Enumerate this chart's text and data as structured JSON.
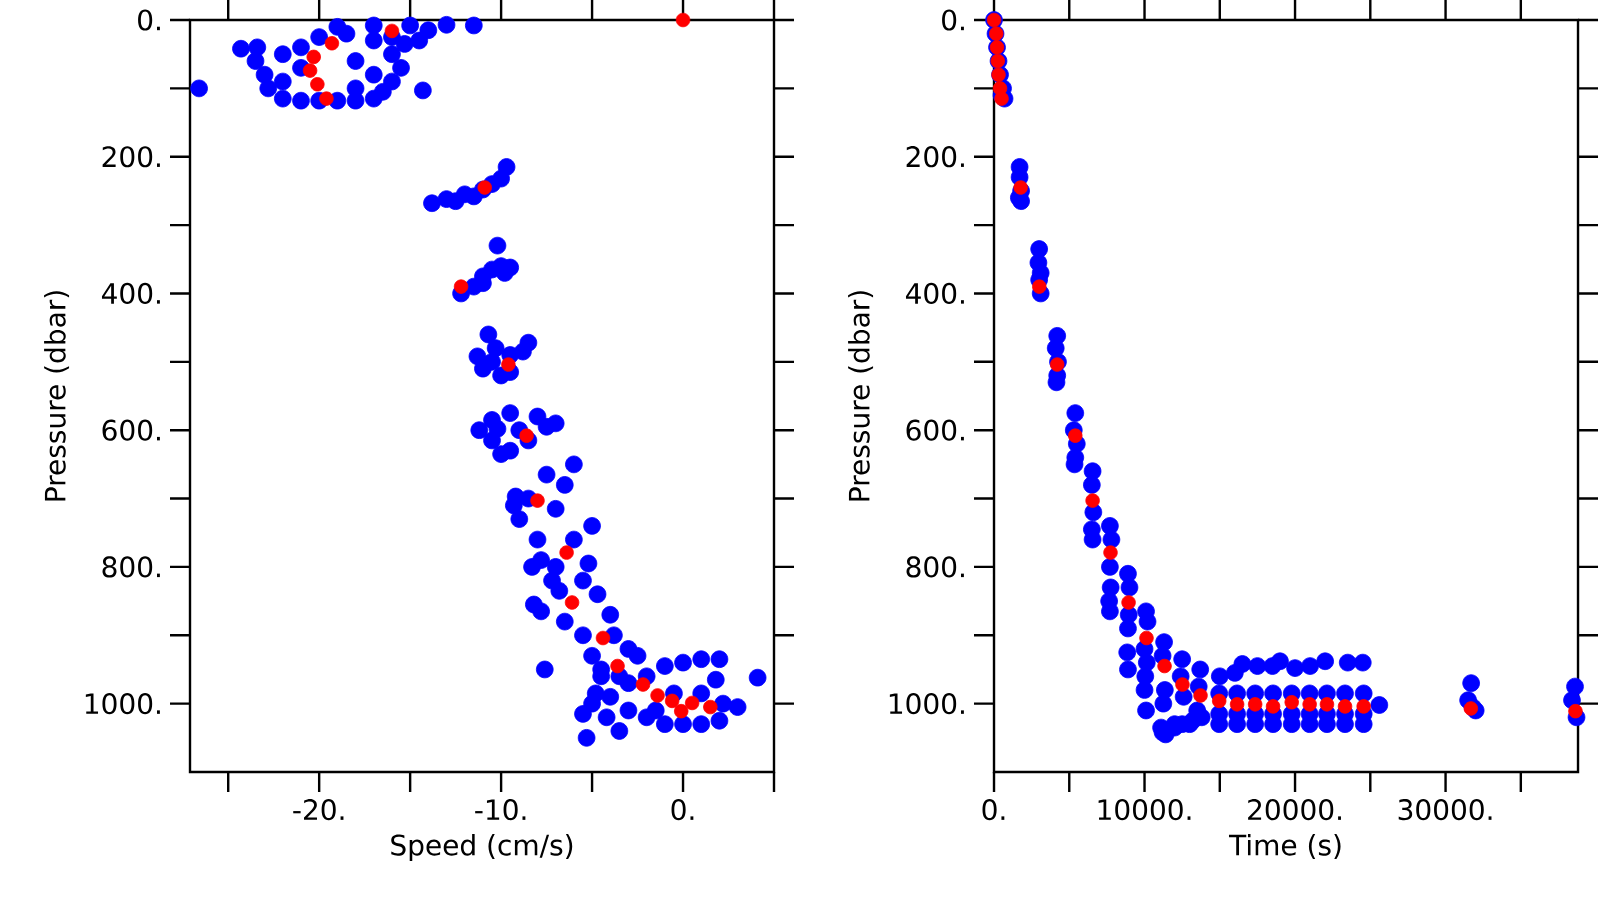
{
  "chart_data": [
    {
      "type": "scatter",
      "xlabel": "Speed (cm/s)",
      "ylabel": "Pressure (dbar)",
      "marker": "circle",
      "xlim": [
        -27.1,
        5
      ],
      "ylim": [
        1100,
        0
      ],
      "xticks": [
        {
          "value": -25,
          "label": null
        },
        {
          "value": -20,
          "label": "-20."
        },
        {
          "value": -15,
          "label": null
        },
        {
          "value": -10,
          "label": "-10."
        },
        {
          "value": -5,
          "label": null
        },
        {
          "value": 0,
          "label": "0."
        },
        {
          "value": 5,
          "label": null
        }
      ],
      "yticks": [
        {
          "value": 0,
          "label": "0."
        },
        {
          "value": 100,
          "label": null
        },
        {
          "value": 200,
          "label": "200."
        },
        {
          "value": 300,
          "label": null
        },
        {
          "value": 400,
          "label": "400."
        },
        {
          "value": 500,
          "label": null
        },
        {
          "value": 600,
          "label": "600."
        },
        {
          "value": 700,
          "label": null
        },
        {
          "value": 800,
          "label": "800."
        },
        {
          "value": 900,
          "label": null
        },
        {
          "value": 1000,
          "label": "1000."
        }
      ],
      "series": [
        {
          "color": "#0000ff",
          "x": [
            -23.4,
            -23.5,
            -23,
            -22.8,
            -22,
            -21,
            -20,
            -19,
            -18,
            -17,
            -16.5,
            -16,
            -15.5,
            -16,
            -17,
            -18.5,
            -19,
            -17,
            -15,
            -13,
            -11.5,
            -14,
            -16,
            -22,
            -21,
            -22,
            -18,
            -17,
            -18,
            -21,
            -20,
            -14.5,
            -15.3,
            -26.6,
            -24.3,
            -14.3,
            -13.8,
            -13,
            -12,
            -11,
            -10.5,
            -10,
            -9.7,
            -11.5,
            -12.5,
            -12.2,
            -11.5,
            -11,
            -10.5,
            -10,
            -9.5,
            -10.2,
            -11,
            -9.8,
            -11.3,
            -10.5,
            -10.7,
            -10,
            -9.5,
            -8.8,
            -8.5,
            -9.5,
            -10.3,
            -11,
            -11.2,
            -10.5,
            -10.5,
            -10,
            -9.5,
            -9,
            -8,
            -7.5,
            -7,
            -9.5,
            -8.5,
            -10.2,
            -9.2,
            -8.5,
            -7.5,
            -6.5,
            -6,
            -7,
            -9,
            -8,
            -9.3,
            -7.8,
            -7,
            -6.8,
            -8.3,
            -8.2,
            -7.8,
            -7.2,
            -6,
            -5,
            -5.2,
            -5.5,
            -4.7,
            -6.5,
            -5.5,
            -4,
            -3.8,
            -3,
            -2.5,
            -5,
            -4.5,
            -7.6,
            -5,
            -4,
            -3.5,
            -5.3,
            -4.2,
            -3,
            -2,
            -1,
            0,
            1,
            2,
            2.2,
            1.8,
            2,
            1,
            0,
            -1,
            -2,
            -3,
            -4.5,
            4.1,
            3,
            -0.5,
            1,
            -1.5,
            -3.5,
            -5.5,
            -4.8
          ],
          "values": [
            40,
            60,
            80,
            100,
            115,
            118,
            118,
            118,
            118,
            115,
            105,
            90,
            70,
            50,
            30,
            20,
            10,
            8,
            8,
            7,
            8,
            15,
            25,
            50,
            70,
            90,
            60,
            80,
            100,
            40,
            25,
            30,
            35,
            100,
            42,
            103,
            268,
            262,
            255,
            248,
            240,
            232,
            215,
            258,
            265,
            400,
            390,
            375,
            365,
            360,
            362,
            330,
            385,
            370,
            492,
            500,
            460,
            520,
            490,
            485,
            472,
            515,
            480,
            510,
            600,
            585,
            615,
            635,
            630,
            600,
            580,
            595,
            590,
            575,
            615,
            598,
            697,
            700,
            665,
            680,
            650,
            715,
            730,
            760,
            710,
            790,
            800,
            835,
            800,
            855,
            865,
            820,
            760,
            740,
            795,
            820,
            840,
            880,
            900,
            870,
            900,
            920,
            930,
            930,
            960,
            950,
            1000,
            990,
            1040,
            1050,
            1020,
            1010,
            1020,
            1030,
            1030,
            1030,
            1025,
            1000,
            965,
            935,
            935,
            940,
            945,
            960,
            970,
            950,
            962,
            1005,
            985,
            985,
            1010,
            960,
            1015,
            985
          ]
        },
        {
          "color": "#ff0000",
          "x": [
            0,
            -16,
            -19.3,
            -20.3,
            -20.5,
            -20.1,
            -19.6,
            -10.9,
            -12.2,
            -9.6,
            -8.6,
            -8,
            -6.4,
            -6.1,
            -4.4,
            -3.6,
            -2.2,
            -1.4,
            -0.6,
            -0.1,
            0.5,
            1.5
          ],
          "values": [
            0,
            16,
            34,
            54,
            74,
            94,
            115,
            245,
            390,
            504,
            608,
            703,
            779,
            852,
            904,
            945,
            972,
            988,
            996,
            1011,
            999,
            1005
          ]
        }
      ]
    },
    {
      "type": "scatter",
      "xlabel": "Time (s)",
      "ylabel": "Pressure (dbar)",
      "marker": "circle",
      "xlim": [
        0,
        38800
      ],
      "ylim": [
        1100,
        0
      ],
      "xticks": [
        {
          "value": 0,
          "label": "0."
        },
        {
          "value": 5000,
          "label": null
        },
        {
          "value": 10000,
          "label": "10000."
        },
        {
          "value": 15000,
          "label": null
        },
        {
          "value": 20000,
          "label": "20000."
        },
        {
          "value": 25000,
          "label": null
        },
        {
          "value": 30000,
          "label": "30000."
        },
        {
          "value": 35000,
          "label": null
        }
      ],
      "yticks": [
        {
          "value": 0,
          "label": "0."
        },
        {
          "value": 100,
          "label": null
        },
        {
          "value": 200,
          "label": "200."
        },
        {
          "value": 300,
          "label": null
        },
        {
          "value": 400,
          "label": "400."
        },
        {
          "value": 500,
          "label": null
        },
        {
          "value": 600,
          "label": "600."
        },
        {
          "value": 700,
          "label": null
        },
        {
          "value": 800,
          "label": "800."
        },
        {
          "value": 900,
          "label": null
        },
        {
          "value": 1000,
          "label": "1000."
        }
      ],
      "series": [
        {
          "color": "#0000ff",
          "x": [
            0,
            100,
            200,
            300,
            400,
            600,
            700,
            500,
            1700,
            1700,
            1800,
            1800,
            1650,
            3000,
            2950,
            3100,
            3000,
            3100,
            4200,
            4100,
            4250,
            4200,
            4150,
            5400,
            5300,
            5500,
            5400,
            5350,
            6550,
            6500,
            6600,
            6500,
            6550,
            7700,
            7800,
            7700,
            7750,
            7650,
            7700,
            8900,
            9000,
            8950,
            8900,
            8850,
            8900,
            10100,
            10200,
            10000,
            10150,
            10050,
            10100,
            10000,
            11300,
            11200,
            11350,
            11250,
            11100,
            11400,
            12500,
            12400,
            12600,
            12000,
            12500,
            13700,
            13600,
            13500,
            13200,
            13800,
            14960,
            14960,
            14960,
            16150,
            16150,
            16150,
            17350,
            17350,
            17350,
            18540,
            18540,
            18540,
            19780,
            19780,
            19780,
            20970,
            20970,
            20970,
            22120,
            22120,
            22120,
            23320,
            23320,
            23320,
            24560,
            24560,
            24560,
            15000,
            16000,
            16500,
            17500,
            18500,
            19000,
            20000,
            21000,
            22000,
            23500,
            24500,
            11200,
            12000,
            13000,
            25600,
            31500,
            31700,
            31800,
            32000,
            38400,
            38600,
            38700
          ],
          "values": [
            0,
            20,
            40,
            60,
            80,
            100,
            115,
            110,
            215,
            230,
            250,
            265,
            260,
            335,
            355,
            370,
            380,
            400,
            462,
            480,
            500,
            520,
            530,
            575,
            600,
            620,
            640,
            650,
            660,
            680,
            720,
            745,
            760,
            740,
            760,
            800,
            830,
            850,
            865,
            810,
            830,
            870,
            890,
            925,
            950,
            865,
            880,
            920,
            940,
            960,
            1010,
            980,
            910,
            930,
            980,
            1000,
            1035,
            1045,
            935,
            960,
            990,
            1030,
            1030,
            950,
            975,
            1010,
            1025,
            1020,
            985,
            1015,
            1030,
            985,
            1015,
            1030,
            985,
            1015,
            1030,
            985,
            1015,
            1030,
            985,
            1015,
            1030,
            985,
            1015,
            1030,
            985,
            1015,
            1030,
            985,
            1015,
            1030,
            985,
            1015,
            1030,
            960,
            955,
            942,
            945,
            945,
            938,
            948,
            945,
            938,
            940,
            940,
            1042,
            1035,
            1030,
            1002,
            995,
            970,
            1005,
            1010,
            995,
            975,
            1020
          ]
        },
        {
          "color": "#ff0000",
          "x": [
            0,
            150,
            200,
            250,
            300,
            400,
            500,
            1770,
            3010,
            4200,
            5400,
            6550,
            7740,
            8940,
            10130,
            11330,
            12520,
            13720,
            14960,
            16150,
            17350,
            18540,
            19780,
            20970,
            22120,
            23320,
            24560,
            31680,
            38630
          ],
          "values": [
            0,
            20,
            40,
            60,
            80,
            100,
            115,
            245,
            390,
            504,
            608,
            703,
            779,
            852,
            904,
            945,
            972,
            988,
            996,
            1001,
            1001,
            1004,
            998,
            1001,
            1001,
            1004,
            1004,
            1007,
            1011
          ]
        }
      ]
    }
  ]
}
